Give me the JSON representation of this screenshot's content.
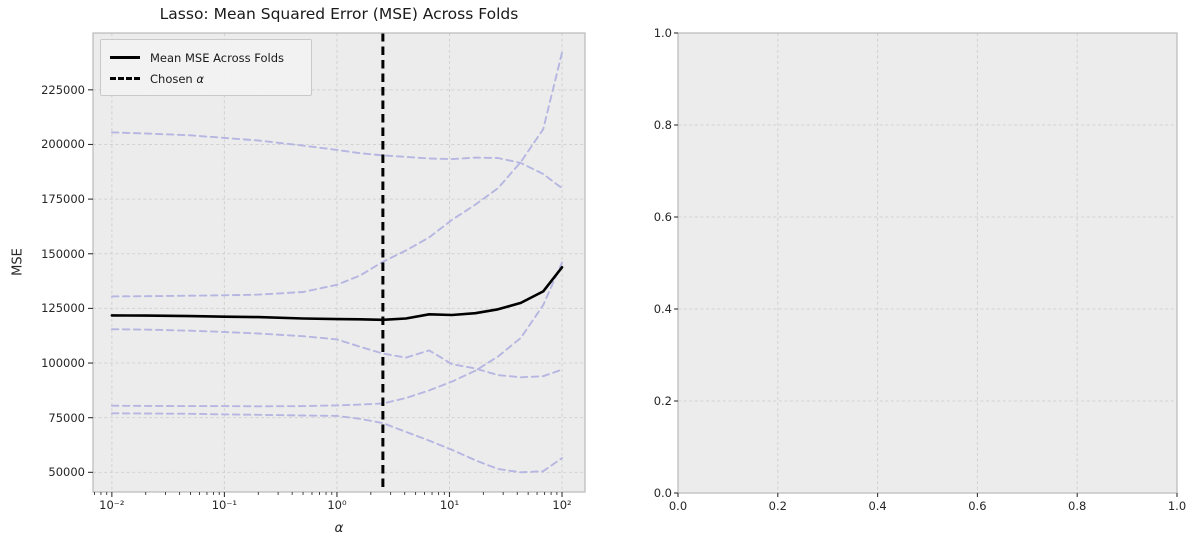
{
  "figure": {
    "title": "Lasso: Mean Squared Error (MSE) Across Folds",
    "background": "#ffffff",
    "panel_background": "#ececec",
    "grid_color": "#d2d2d2",
    "panel_border_color": "#b9b9b9",
    "tick_color": "#333333",
    "text_color": "#262626",
    "fold_line_color": "#b6b6e2",
    "mean_line_color": "#000000",
    "chosen_alpha_line_color": "#000000"
  },
  "legend": {
    "mean_label": "Mean MSE Across Folds",
    "chosen_prefix": "Chosen ",
    "alpha_symbol": "α"
  },
  "chart_data": [
    {
      "type": "line",
      "title": "Lasso: Mean Squared Error (MSE) Across Folds",
      "xlabel": "α",
      "ylabel": "MSE",
      "xscale": "log",
      "xlim": [
        0.0068,
        160
      ],
      "ylim": [
        41000,
        251000
      ],
      "grid": true,
      "legend_position": "upper left",
      "legend_entries": [
        "Mean MSE Across Folds",
        "Chosen α"
      ],
      "chosen_alpha": 2.56,
      "x_ticks": [
        {
          "value": 0.01,
          "label": "10⁻²"
        },
        {
          "value": 0.1,
          "label": "10⁻¹"
        },
        {
          "value": 1,
          "label": "10⁰"
        },
        {
          "value": 10,
          "label": "10¹"
        },
        {
          "value": 100,
          "label": "10²"
        }
      ],
      "y_ticks": [
        {
          "value": 50000,
          "label": "50000"
        },
        {
          "value": 75000,
          "label": "75000"
        },
        {
          "value": 100000,
          "label": "100000"
        },
        {
          "value": 125000,
          "label": "125000"
        },
        {
          "value": 150000,
          "label": "150000"
        },
        {
          "value": 175000,
          "label": "175000"
        },
        {
          "value": 200000,
          "label": "200000"
        },
        {
          "value": 225000,
          "label": "225000"
        }
      ],
      "x": [
        0.01,
        0.02,
        0.05,
        0.1,
        0.2,
        0.5,
        1.0,
        1.6,
        2.56,
        4.1,
        6.6,
        10.5,
        17,
        27,
        43,
        68,
        100
      ],
      "series": [
        {
          "name": "Fold 1 MSE",
          "style": "dashed",
          "color": "#b6b6e2",
          "values": [
            205500,
            205000,
            204200,
            203000,
            201800,
            199500,
            197500,
            196000,
            195000,
            194300,
            193600,
            193300,
            194000,
            193800,
            191500,
            186500,
            180000
          ]
        },
        {
          "name": "Fold 2 MSE",
          "style": "dashed",
          "color": "#b6b6e2",
          "values": [
            130500,
            130600,
            130800,
            131000,
            131300,
            132500,
            135800,
            140000,
            146300,
            151500,
            157500,
            165500,
            172500,
            180000,
            192000,
            207000,
            242000
          ]
        },
        {
          "name": "Fold 3 MSE",
          "style": "dashed",
          "color": "#b6b6e2",
          "values": [
            115500,
            115300,
            114800,
            114200,
            113500,
            112300,
            110800,
            107500,
            104300,
            102500,
            105800,
            99500,
            97500,
            94500,
            93500,
            94000,
            97000
          ]
        },
        {
          "name": "Fold 4 MSE",
          "style": "dashed",
          "color": "#b6b6e2",
          "values": [
            80500,
            80400,
            80300,
            80300,
            80200,
            80300,
            80600,
            81000,
            81500,
            84000,
            87500,
            91500,
            96500,
            103000,
            111500,
            126500,
            146000
          ]
        },
        {
          "name": "Fold 5 MSE",
          "style": "dashed",
          "color": "#b6b6e2",
          "values": [
            77000,
            76900,
            76800,
            76500,
            76300,
            76000,
            75800,
            74500,
            72500,
            68500,
            64500,
            60300,
            55500,
            51500,
            50000,
            50500,
            56500
          ]
        },
        {
          "name": "Mean MSE Across Folds",
          "style": "solid",
          "color": "#000000",
          "values": [
            121800,
            121700,
            121500,
            121200,
            121000,
            120400,
            120100,
            120000,
            119800,
            120400,
            122300,
            122000,
            122800,
            124600,
            127500,
            132800,
            143800
          ]
        }
      ]
    },
    {
      "type": "empty",
      "title": "",
      "xlabel": "",
      "ylabel": "",
      "xlim": [
        0.0,
        1.0
      ],
      "ylim": [
        0.0,
        1.0
      ],
      "grid": true,
      "x_ticks": [
        {
          "value": 0.0,
          "label": "0.0"
        },
        {
          "value": 0.2,
          "label": "0.2"
        },
        {
          "value": 0.4,
          "label": "0.4"
        },
        {
          "value": 0.6,
          "label": "0.6"
        },
        {
          "value": 0.8,
          "label": "0.8"
        },
        {
          "value": 1.0,
          "label": "1.0"
        }
      ],
      "y_ticks": [
        {
          "value": 0.0,
          "label": "0.0"
        },
        {
          "value": 0.2,
          "label": "0.2"
        },
        {
          "value": 0.4,
          "label": "0.4"
        },
        {
          "value": 0.6,
          "label": "0.6"
        },
        {
          "value": 0.8,
          "label": "0.8"
        },
        {
          "value": 1.0,
          "label": "1.0"
        }
      ]
    }
  ]
}
